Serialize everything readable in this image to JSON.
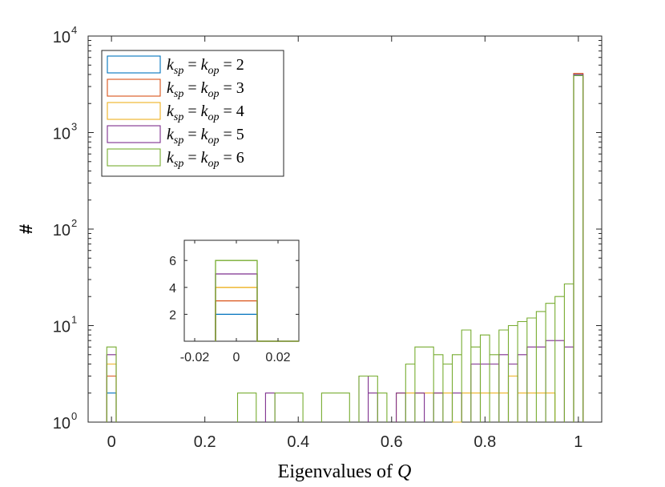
{
  "chart_data": {
    "type": "histogram",
    "title": "",
    "xlabel_text": "Eigenvalues of ",
    "xlabel_var": "Q",
    "ylabel": "#",
    "xlim": [
      -0.05,
      1.05
    ],
    "ylim": [
      1,
      10000
    ],
    "yscale": "log",
    "x_ticks": [
      "0",
      "0.2",
      "0.4",
      "0.6",
      "0.8",
      "1"
    ],
    "y_tick_base": "10",
    "y_tick_exponents": [
      "0",
      "1",
      "2",
      "3",
      "4"
    ],
    "bin_width": 0.02,
    "legend_location": "top-left",
    "series": [
      {
        "name": "k_sp = k_op = 2",
        "legend_base": "k",
        "legend_sub1": "sp",
        "legend_sub2": "op",
        "legend_value": "2",
        "color": "#0072BD",
        "bins": [
          [
            -0.01,
            0.01,
            2
          ],
          [
            0.99,
            1.01,
            3900
          ]
        ]
      },
      {
        "name": "k_sp = k_op = 3",
        "legend_base": "k",
        "legend_sub1": "sp",
        "legend_sub2": "op",
        "legend_value": "3",
        "color": "#D95319",
        "bins": [
          [
            -0.01,
            0.01,
            3
          ],
          [
            0.99,
            1.01,
            4100
          ]
        ]
      },
      {
        "name": "k_sp = k_op = 4",
        "legend_base": "k",
        "legend_sub1": "sp",
        "legend_sub2": "op",
        "legend_value": "4",
        "color": "#EDB120",
        "bins": [
          [
            -0.01,
            0.01,
            4
          ],
          [
            0.61,
            0.73,
            2
          ],
          [
            0.73,
            0.75,
            1
          ],
          [
            0.75,
            0.85,
            2
          ],
          [
            0.85,
            0.87,
            3
          ],
          [
            0.87,
            0.95,
            2
          ],
          [
            0.99,
            1.01,
            4000
          ]
        ]
      },
      {
        "name": "k_sp = k_op = 5",
        "legend_base": "k",
        "legend_sub1": "sp",
        "legend_sub2": "op",
        "legend_value": "5",
        "color": "#7E2F8E",
        "bins": [
          [
            -0.01,
            0.01,
            5
          ],
          [
            0.33,
            0.35,
            2
          ],
          [
            0.53,
            0.55,
            3
          ],
          [
            0.55,
            0.57,
            2
          ],
          [
            0.61,
            0.63,
            2
          ],
          [
            0.65,
            0.67,
            2
          ],
          [
            0.69,
            0.71,
            2
          ],
          [
            0.73,
            0.75,
            2
          ],
          [
            0.77,
            0.79,
            4
          ],
          [
            0.79,
            0.83,
            4
          ],
          [
            0.83,
            0.85,
            5
          ],
          [
            0.85,
            0.87,
            4
          ],
          [
            0.87,
            0.89,
            5
          ],
          [
            0.89,
            0.93,
            6
          ],
          [
            0.93,
            0.97,
            7
          ],
          [
            0.97,
            0.99,
            6
          ],
          [
            0.99,
            1.01,
            4000
          ]
        ]
      },
      {
        "name": "k_sp = k_op = 6",
        "legend_base": "k",
        "legend_sub1": "sp",
        "legend_sub2": "op",
        "legend_value": "6",
        "color": "#77AC30",
        "bins": [
          [
            -0.01,
            0.01,
            6
          ],
          [
            0.27,
            0.31,
            2
          ],
          [
            0.35,
            0.41,
            2
          ],
          [
            0.45,
            0.51,
            2
          ],
          [
            0.53,
            0.57,
            3
          ],
          [
            0.57,
            0.59,
            2
          ],
          [
            0.63,
            0.65,
            4
          ],
          [
            0.65,
            0.69,
            6
          ],
          [
            0.69,
            0.71,
            5
          ],
          [
            0.71,
            0.73,
            4
          ],
          [
            0.73,
            0.75,
            5
          ],
          [
            0.75,
            0.77,
            9
          ],
          [
            0.77,
            0.79,
            6
          ],
          [
            0.79,
            0.81,
            8
          ],
          [
            0.81,
            0.83,
            5
          ],
          [
            0.83,
            0.85,
            9
          ],
          [
            0.85,
            0.87,
            10
          ],
          [
            0.87,
            0.89,
            11
          ],
          [
            0.89,
            0.91,
            12
          ],
          [
            0.91,
            0.93,
            14
          ],
          [
            0.93,
            0.95,
            17
          ],
          [
            0.95,
            0.97,
            20
          ],
          [
            0.97,
            0.99,
            27
          ],
          [
            0.99,
            1.01,
            3900
          ]
        ]
      }
    ],
    "inset": {
      "xlim": [
        -0.025,
        0.03
      ],
      "ylim": [
        0,
        7.5
      ],
      "x_ticks": [
        "-0.02",
        "0",
        "0.02"
      ],
      "x_tick_values": [
        -0.02,
        0,
        0.02
      ],
      "y_ticks": [
        "2",
        "4",
        "6"
      ],
      "y_tick_values": [
        2,
        4,
        6
      ],
      "bin_range": [
        -0.01,
        0.01
      ],
      "counts": [
        2,
        3,
        4,
        5,
        6
      ]
    }
  }
}
